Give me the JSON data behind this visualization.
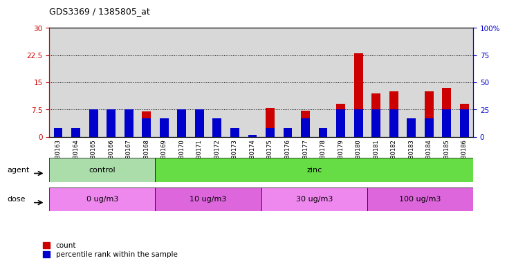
{
  "title": "GDS3369 / 1385805_at",
  "samples": [
    "GSM280163",
    "GSM280164",
    "GSM280165",
    "GSM280166",
    "GSM280167",
    "GSM280168",
    "GSM280169",
    "GSM280170",
    "GSM280171",
    "GSM280172",
    "GSM280173",
    "GSM280174",
    "GSM280175",
    "GSM280176",
    "GSM280177",
    "GSM280178",
    "GSM280179",
    "GSM280180",
    "GSM280181",
    "GSM280182",
    "GSM280183",
    "GSM280184",
    "GSM280185",
    "GSM280186"
  ],
  "count_values": [
    0.15,
    0.8,
    7.2,
    3.2,
    7.2,
    7.0,
    1.5,
    4.5,
    7.2,
    2.0,
    0.5,
    0.1,
    8.0,
    1.0,
    7.2,
    2.5,
    9.0,
    23.0,
    12.0,
    12.5,
    2.0,
    12.5,
    13.5,
    9.0
  ],
  "percentile_values": [
    8.0,
    8.0,
    25.0,
    25.0,
    25.0,
    17.0,
    17.0,
    25.0,
    25.0,
    17.0,
    8.0,
    2.0,
    8.0,
    8.0,
    17.0,
    8.0,
    25.0,
    25.0,
    25.0,
    25.0,
    17.0,
    17.0,
    25.0,
    25.0
  ],
  "count_color": "#cc0000",
  "percentile_color": "#0000cc",
  "ylim_left": [
    0,
    30
  ],
  "ylim_right": [
    0,
    100
  ],
  "yticks_left": [
    0,
    7.5,
    15,
    22.5,
    30
  ],
  "yticks_right": [
    0,
    25,
    50,
    75,
    100
  ],
  "ytick_labels_left": [
    "0",
    "7.5",
    "15",
    "22.5",
    "30"
  ],
  "ytick_labels_right": [
    "0",
    "25",
    "50",
    "75",
    "100%"
  ],
  "agent_groups": [
    {
      "label": "control",
      "start": 0,
      "end": 6,
      "color": "#aaddaa"
    },
    {
      "label": "zinc",
      "start": 6,
      "end": 24,
      "color": "#66dd44"
    }
  ],
  "dose_groups": [
    {
      "label": "0 ug/m3",
      "start": 0,
      "end": 6,
      "color": "#ee88ee"
    },
    {
      "label": "10 ug/m3",
      "start": 6,
      "end": 12,
      "color": "#dd66dd"
    },
    {
      "label": "30 ug/m3",
      "start": 12,
      "end": 18,
      "color": "#ee88ee"
    },
    {
      "label": "100 ug/m3",
      "start": 18,
      "end": 24,
      "color": "#dd66dd"
    }
  ],
  "plot_bg": "#d8d8d8",
  "bar_width": 0.5,
  "legend_count_label": "count",
  "legend_percentile_label": "percentile rank within the sample"
}
